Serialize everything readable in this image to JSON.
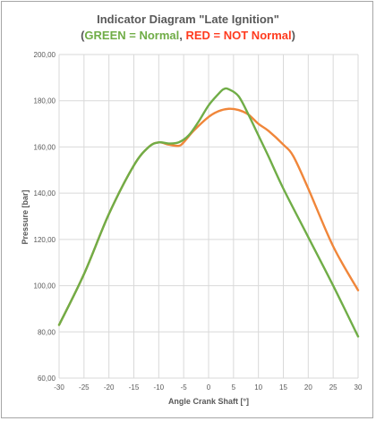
{
  "chart_data": {
    "type": "line",
    "title_main": "Indicator Diagram \"Late Ignition\"",
    "subtitle": {
      "open": "(",
      "green_label": "GREEN = Normal",
      "sep": ", ",
      "red_label": "RED = NOT Normal",
      "close": ")"
    },
    "xlabel": "Angle Crank Shaft [°]",
    "ylabel": "Pressure [bar]",
    "xlim": [
      -30,
      30
    ],
    "ylim": [
      60,
      200
    ],
    "xticks": [
      "-30",
      "-25",
      "-20",
      "-15",
      "-10",
      "-5",
      "0",
      "5",
      "10",
      "15",
      "20",
      "25",
      "30"
    ],
    "yticks": [
      "60,00",
      "80,00",
      "100,00",
      "120,00",
      "140,00",
      "160,00",
      "180,00",
      "200,00"
    ],
    "grid": true,
    "series": [
      {
        "name": "NOT Normal",
        "color": "#f0863a",
        "x": [
          -30,
          -25,
          -20,
          -15,
          -12,
          -10,
          -8,
          -6,
          -5,
          -3,
          0,
          2,
          4,
          6,
          8,
          10,
          12,
          15,
          17,
          20,
          25,
          30
        ],
        "y": [
          83,
          105,
          131,
          152,
          160,
          162,
          161,
          160.5,
          162,
          167,
          173,
          175.5,
          176.5,
          176,
          174,
          170,
          167,
          161,
          156,
          142,
          117,
          98
        ]
      },
      {
        "name": "Normal",
        "color": "#70ad47",
        "x": [
          -30,
          -25,
          -20,
          -15,
          -12,
          -10,
          -8,
          -6,
          -4,
          -2,
          0,
          2,
          3,
          4,
          6,
          8,
          10,
          12,
          15,
          20,
          25,
          30
        ],
        "y": [
          83,
          105,
          131,
          152,
          160,
          162,
          161.5,
          162,
          165,
          171,
          178,
          183,
          185,
          185,
          182,
          174,
          165,
          156,
          142,
          121,
          100,
          78
        ]
      }
    ]
  }
}
